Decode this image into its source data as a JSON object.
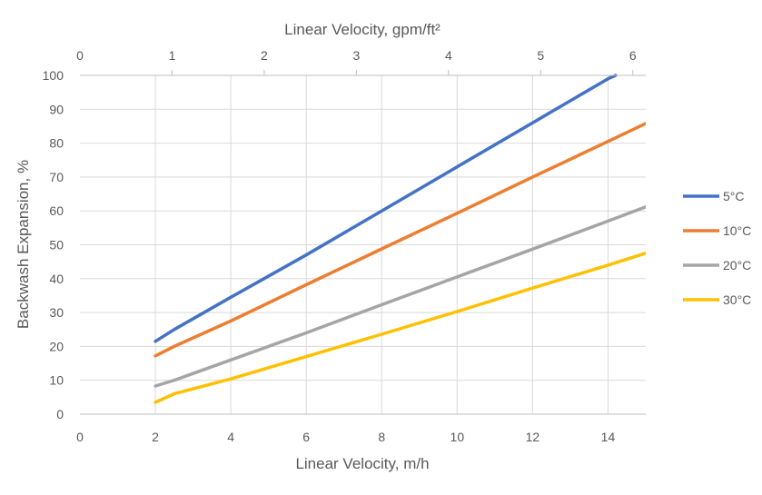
{
  "chart_data": {
    "type": "line",
    "xlabel": "Linear Velocity, m/h",
    "x2label": "Linear Velocity, gpm/ft²",
    "ylabel": "Backwash Expansion, %",
    "xlim": [
      0,
      15
    ],
    "x2lim": [
      0,
      6.14
    ],
    "ylim": [
      0,
      100
    ],
    "xticks": [
      0,
      2,
      4,
      6,
      8,
      10,
      12,
      14
    ],
    "x2ticks": [
      0,
      1,
      2,
      3,
      4,
      5,
      6
    ],
    "yticks": [
      0,
      10,
      20,
      30,
      40,
      50,
      60,
      70,
      80,
      90,
      100
    ],
    "grid": true,
    "legend_position": "right",
    "series": [
      {
        "name": "5°C",
        "color": "#4472C4",
        "x": [
          2,
          2.5,
          4,
          6,
          8,
          10,
          12,
          14,
          14.2
        ],
        "y": [
          21.5,
          25,
          34.5,
          47,
          60,
          73,
          86,
          99,
          100
        ]
      },
      {
        "name": "10°C",
        "color": "#ED7D31",
        "x": [
          2,
          2.5,
          4,
          6,
          8,
          10,
          12,
          14,
          15
        ],
        "y": [
          17.2,
          20,
          27.5,
          38.2,
          48.8,
          59.3,
          70,
          80.5,
          85.8
        ]
      },
      {
        "name": "20°C",
        "color": "#A5A5A5",
        "x": [
          2,
          2.5,
          4,
          6,
          8,
          10,
          12,
          14,
          15
        ],
        "y": [
          8.3,
          10,
          16,
          24,
          32.3,
          40.5,
          48.7,
          57,
          61.2
        ]
      },
      {
        "name": "30°C",
        "color": "#FFC000",
        "x": [
          2,
          2.5,
          4,
          6,
          8,
          10,
          12,
          14,
          15
        ],
        "y": [
          3.5,
          6,
          10.4,
          17,
          23.6,
          30.3,
          37.2,
          44,
          47.5
        ]
      }
    ]
  }
}
